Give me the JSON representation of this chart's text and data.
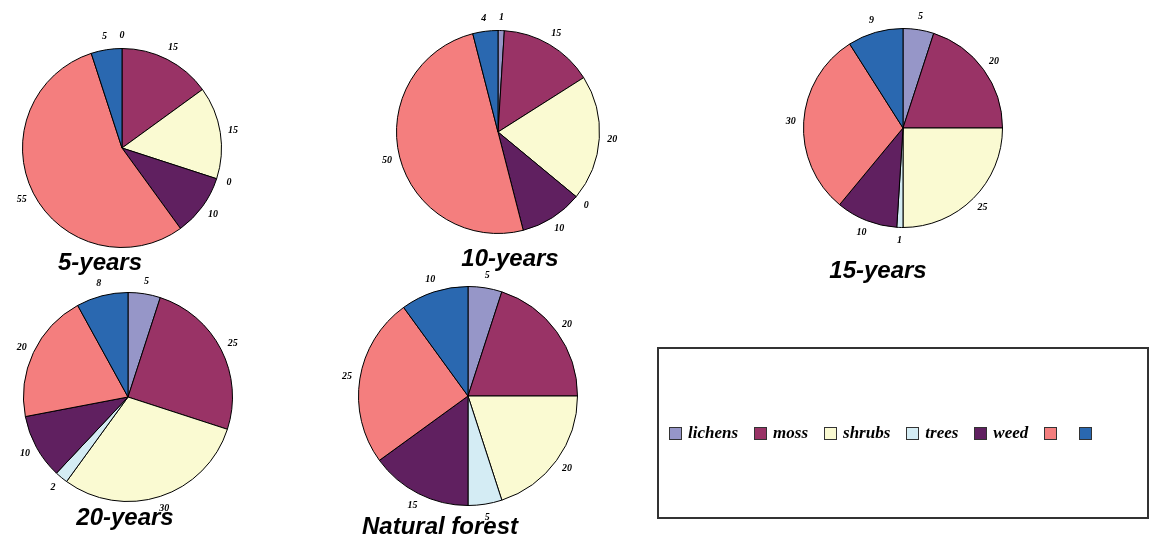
{
  "chart_data": [
    {
      "type": "pie",
      "title": "5-years",
      "categories": [
        "lichens",
        "moss",
        "shrubs",
        "trees",
        "weed",
        null,
        null
      ],
      "values": [
        0,
        15,
        15,
        0,
        10,
        55,
        5
      ],
      "value_labels": [
        "0",
        "15",
        "15",
        "0",
        "10",
        "55",
        "5"
      ],
      "colors": [
        "#9696c8",
        "#993366",
        "#fafad2",
        "#d4ecf4",
        "#602060",
        "#f47e7e",
        "#2a68b0"
      ],
      "legend": "bottom right"
    },
    {
      "type": "pie",
      "title": "10-years",
      "categories": [
        null,
        null,
        null,
        null,
        null,
        null,
        null
      ],
      "values": [
        1,
        15,
        20,
        0,
        10,
        50,
        4
      ],
      "value_labels": [
        "1",
        "15",
        "20",
        "0",
        "10",
        "50",
        "4"
      ],
      "colors": [
        "#9696c8",
        "#993366",
        "#fafad2",
        "#d4ecf4",
        "#602060",
        "#f47e7e",
        "#2a68b0"
      ]
    },
    {
      "type": "pie",
      "title": "15-years",
      "categories": [
        null,
        null,
        null,
        null,
        null,
        null,
        null
      ],
      "values": [
        5,
        20,
        25,
        1,
        10,
        30,
        9
      ],
      "colors": [
        "#9696c8",
        "#993366",
        "#fafad2",
        "#d4ecf4",
        "#602060",
        "#f47e7e",
        "#2a68b0"
      ],
      "data_labels": true
    },
    {
      "type": "pie",
      "title": "20-years",
      "categories": [
        null,
        null,
        null,
        null,
        null,
        null,
        null
      ],
      "values": [
        5,
        25,
        30,
        2,
        10,
        20,
        8
      ],
      "colors": [
        "#9696c8",
        "#993366",
        "#fafad2",
        "#d4ecf4",
        "#602060",
        "#f47e7e",
        "#2a68b0"
      ],
      "data_labels": true
    },
    {
      "type": "pie",
      "title": "Natural forest",
      "categories": [
        null,
        null,
        null,
        null,
        null,
        null,
        null
      ],
      "values": [
        5,
        20,
        20,
        5,
        15,
        25,
        10
      ],
      "colors": [
        "#9696c8",
        "#993366",
        "#fafad2",
        "#d4ecf4",
        "#602060",
        "#f47e7e",
        "#2a68b0"
      ],
      "data_labels": true
    }
  ]
}
